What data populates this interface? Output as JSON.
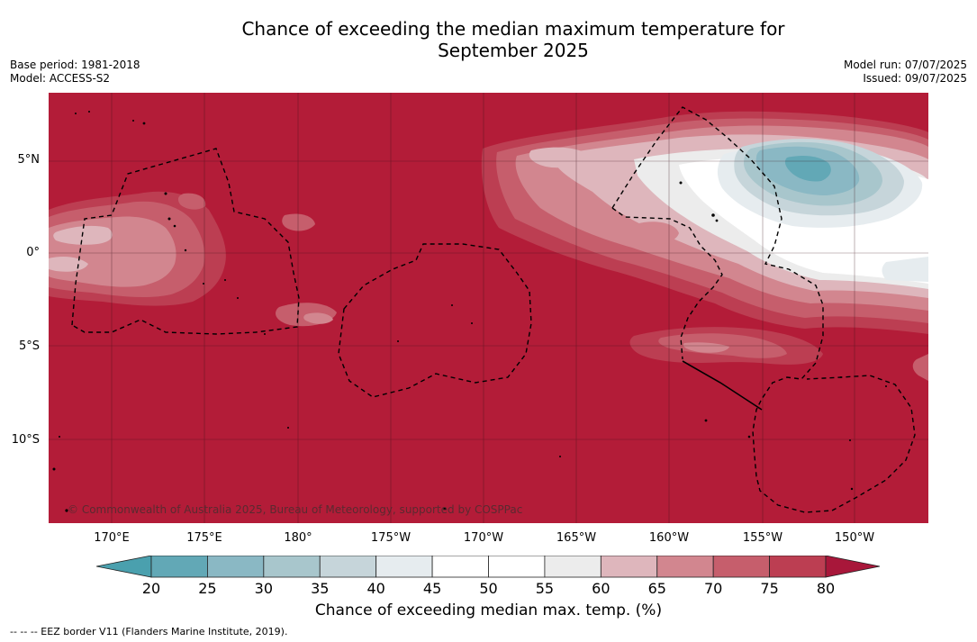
{
  "title_line1": "Chance of exceeding the median maximum temperature for",
  "title_line2": "September 2025",
  "meta_left": {
    "base_period": "Base period: 1981-2018",
    "model": "Model: ACCESS-S2"
  },
  "meta_right": {
    "model_run": "Model run: 07/07/2025",
    "issued": "Issued: 09/07/2025"
  },
  "map": {
    "lat_labels": [
      "5°N",
      "0°",
      "5°S",
      "10°S"
    ],
    "lon_labels": [
      "170°E",
      "175°E",
      "180°",
      "175°W",
      "170°W",
      "165°W",
      "160°W",
      "155°W",
      "150°W"
    ],
    "copyright": "© Commonwealth of Australia 2025, Bureau of Meteorology, supported by COSPPac",
    "background_color": "#b31c38"
  },
  "colorbar": {
    "ticks": [
      "20",
      "25",
      "30",
      "35",
      "40",
      "45",
      "50",
      "55",
      "60",
      "65",
      "70",
      "75",
      "80"
    ],
    "colors": [
      "#62a8b6",
      "#8ab8c4",
      "#a8c6cc",
      "#c6d5da",
      "#e6ecef",
      "#ffffff",
      "#ffffff",
      "#ececec",
      "#deb6bc",
      "#d2868f",
      "#c65e6c",
      "#bc3e52"
    ],
    "under_color": "#4aa0ae",
    "over_color": "#a8173a",
    "label": "Chance of exceeding median max. temp. (%)"
  },
  "footnote": "--  --  -- EEZ border V11 (Flanders Marine Institute, 2019)."
}
